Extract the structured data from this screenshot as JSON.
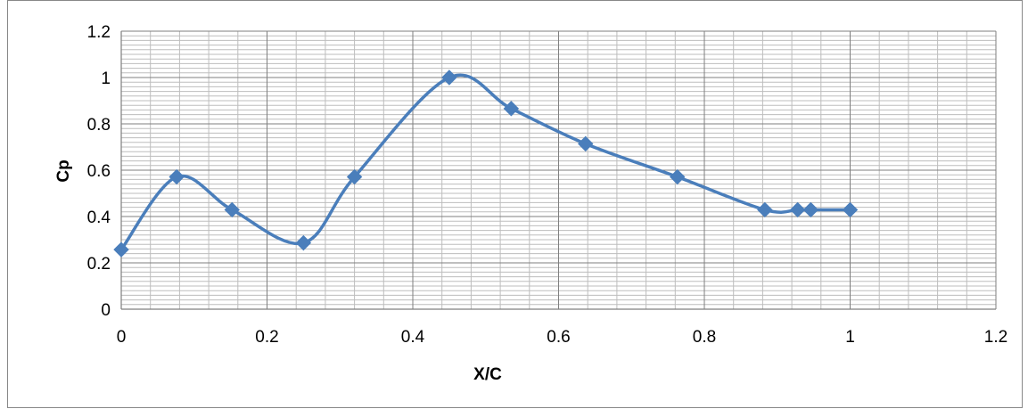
{
  "chart_data": {
    "type": "line",
    "title": "",
    "xlabel": "X/C",
    "ylabel": "Cp",
    "xlim": [
      0,
      1.2
    ],
    "ylim": [
      0,
      1.2
    ],
    "x_ticks": [
      "0",
      "0.2",
      "0.4",
      "0.6",
      "0.8",
      "1",
      "1.2"
    ],
    "y_ticks": [
      "0",
      "0.2",
      "0.4",
      "0.6",
      "0.8",
      "1",
      "1.2"
    ],
    "grid": true,
    "legend": "none",
    "smoothed": true,
    "series": [
      {
        "color": "#4a7ebb",
        "marker": "diamond",
        "x": [
          0,
          0.076,
          0.152,
          0.25,
          0.32,
          0.45,
          0.535,
          0.637,
          0.763,
          0.883,
          0.928,
          0.946,
          1.0
        ],
        "y": [
          0.257,
          0.571,
          0.429,
          0.286,
          0.571,
          1.0,
          0.866,
          0.714,
          0.571,
          0.429,
          0.429,
          0.429,
          0.429
        ]
      }
    ]
  }
}
